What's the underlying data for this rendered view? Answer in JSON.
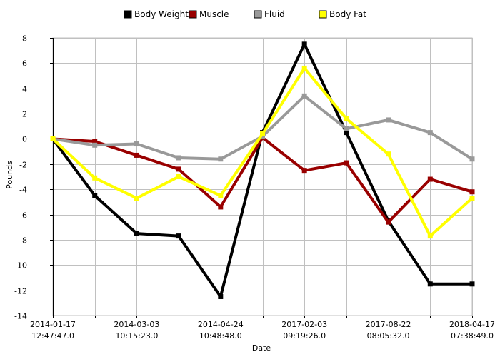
{
  "chart_data": {
    "type": "line",
    "xlabel": "Date",
    "ylabel": "Pounds",
    "ylim": [
      -14,
      8
    ],
    "yticks": [
      8,
      6,
      4,
      2,
      0,
      -2,
      -4,
      -6,
      -8,
      -10,
      -12,
      -14
    ],
    "grid": true,
    "legend_position": "top",
    "x_tick_labels": [
      {
        "date": "2014-01-17",
        "time": "12:47:47.0"
      },
      {
        "date": "2014-03-03",
        "time": "10:15:23.0"
      },
      {
        "date": "2014-04-24",
        "time": "10:48:48.0"
      },
      {
        "date": "2017-02-03",
        "time": "09:19:26.0"
      },
      {
        "date": "2017-08-22",
        "time": "08:05:32.0"
      },
      {
        "date": "2018-04-17",
        "time": "07:38:49.0"
      }
    ],
    "series": [
      {
        "name": "Body Weight",
        "color": "#000000",
        "values": [
          0,
          -4.5,
          -7.5,
          -7.7,
          -12.5,
          0.5,
          7.5,
          0.5,
          -6.5,
          -11.5,
          -11.5
        ]
      },
      {
        "name": "Muscle",
        "color": "#990000",
        "values": [
          0,
          -0.2,
          -1.3,
          -2.4,
          -5.4,
          0.1,
          -2.5,
          -1.9,
          -6.6,
          -3.2,
          -4.2
        ]
      },
      {
        "name": "Fluid",
        "color": "#999999",
        "values": [
          0,
          -0.5,
          -0.4,
          -1.5,
          -1.6,
          0.2,
          3.4,
          0.8,
          1.5,
          0.5,
          -1.6
        ]
      },
      {
        "name": "Body Fat",
        "color": "#ffff00",
        "values": [
          0,
          -3.1,
          -4.7,
          -3.0,
          -4.5,
          0.4,
          5.6,
          1.6,
          -1.2,
          -7.7,
          -4.7
        ]
      }
    ]
  }
}
